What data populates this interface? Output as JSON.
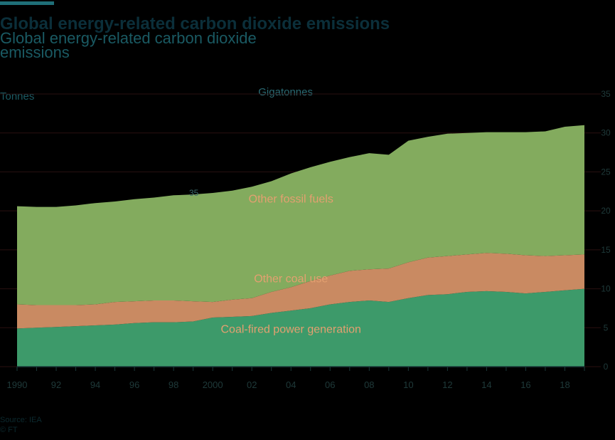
{
  "header": {
    "title": "Global energy-related carbon dioxide emissions",
    "subtitle": "Global energy-related carbon dioxide emissions",
    "unit_left": "Tonnes",
    "unit_right": "Gigatonnes",
    "note_label": "35"
  },
  "footer": {
    "source": "Source: IEA",
    "copyright": "© FT"
  },
  "colors": {
    "background": "#000000",
    "coal_power": "#3d9a6a",
    "other_coal": "#c98a62",
    "other_fossil": "#83ab5e",
    "label_text": "#e3a070",
    "axis": "#1a3a3a"
  },
  "chart_data": {
    "type": "area",
    "stacked": true,
    "title": "",
    "xlabel": "",
    "ylabel": "",
    "x": [
      1990,
      1991,
      1992,
      1993,
      1994,
      1995,
      1996,
      1997,
      1998,
      1999,
      2000,
      2001,
      2002,
      2003,
      2004,
      2005,
      2006,
      2007,
      2008,
      2009,
      2010,
      2011,
      2012,
      2013,
      2014,
      2015,
      2016,
      2017,
      2018,
      2019
    ],
    "xtick_labels": [
      "1990",
      "92",
      "94",
      "96",
      "98",
      "2000",
      "02",
      "04",
      "06",
      "08",
      "10",
      "12",
      "14",
      "16",
      "18"
    ],
    "ylim": [
      0,
      35
    ],
    "series": [
      {
        "name": "Coal-fired power generation",
        "values": [
          4.9,
          5.0,
          5.1,
          5.2,
          5.3,
          5.4,
          5.6,
          5.7,
          5.7,
          5.8,
          6.3,
          6.4,
          6.5,
          6.9,
          7.2,
          7.5,
          8.0,
          8.3,
          8.5,
          8.3,
          8.8,
          9.2,
          9.3,
          9.6,
          9.7,
          9.6,
          9.4,
          9.6,
          9.8,
          10.0
        ]
      },
      {
        "name": "Other coal use",
        "values": [
          3.1,
          2.9,
          2.8,
          2.7,
          2.7,
          2.9,
          2.8,
          2.8,
          2.8,
          2.6,
          2.0,
          2.2,
          2.3,
          2.7,
          3.0,
          3.5,
          3.7,
          4.0,
          4.0,
          4.3,
          4.6,
          4.8,
          4.9,
          4.8,
          4.9,
          4.9,
          4.9,
          4.6,
          4.5,
          4.4
        ]
      },
      {
        "name": "Other fossil fuels",
        "values": [
          12.6,
          12.6,
          12.6,
          12.8,
          13.0,
          12.9,
          13.1,
          13.2,
          13.5,
          13.7,
          14.0,
          14.0,
          14.3,
          14.2,
          14.6,
          14.6,
          14.6,
          14.6,
          14.9,
          14.6,
          15.6,
          15.5,
          15.7,
          15.6,
          15.5,
          15.6,
          15.8,
          16.0,
          16.5,
          16.6
        ]
      }
    ],
    "area_labels": [
      "Other fossil fuels",
      "Other coal use",
      "Coal-fired power generation"
    ],
    "ytick_labels": [
      "35",
      "30",
      "25",
      "20",
      "15",
      "10",
      "5",
      "0"
    ],
    "grid": true
  }
}
